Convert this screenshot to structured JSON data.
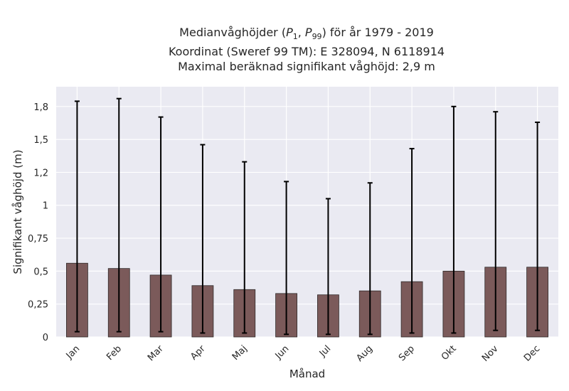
{
  "chart_data": {
    "type": "bar",
    "title": {
      "line1_prefix": "Medianvåghöjder (",
      "line1_p1": "P",
      "line1_p1_sub": "1",
      "line1_sep": ", ",
      "line1_p99": "P",
      "line1_p99_sub": "99",
      "line1_suffix": ") för år 1979 - 2019",
      "line2": "Koordinat (Sweref 99 TM): E 328094, N 6118914",
      "line3": "Maximal beräknad signifikant våghöjd: 2,9 m"
    },
    "xlabel": "Månad",
    "ylabel": "Signifikant våghöjd (m)",
    "ylim": [
      0,
      1.9
    ],
    "yticks": [
      0,
      0.25,
      0.5,
      0.75,
      1,
      1.25,
      1.5,
      1.75
    ],
    "ytick_labels": [
      "0",
      "0,25",
      "0,5",
      "0,75",
      "1",
      "1,2",
      "1,5",
      "1,8"
    ],
    "categories": [
      "Jan",
      "Feb",
      "Mar",
      "Apr",
      "Maj",
      "Jun",
      "Jul",
      "Aug",
      "Sep",
      "Okt",
      "Nov",
      "Dec"
    ],
    "values": [
      0.56,
      0.52,
      0.47,
      0.39,
      0.36,
      0.33,
      0.32,
      0.35,
      0.42,
      0.5,
      0.53,
      0.53
    ],
    "p1": [
      0.04,
      0.04,
      0.04,
      0.03,
      0.03,
      0.02,
      0.02,
      0.02,
      0.03,
      0.03,
      0.05,
      0.05
    ],
    "p99": [
      1.79,
      1.81,
      1.67,
      1.46,
      1.33,
      1.18,
      1.05,
      1.17,
      1.43,
      1.75,
      1.71,
      1.63
    ],
    "grid": true,
    "colors": {
      "bar": "#7b5a5a",
      "bar_edge": "#2f2a2a",
      "errorbar": "#000000",
      "plot_bg": "#eaeaf2",
      "grid": "#ffffff"
    }
  }
}
